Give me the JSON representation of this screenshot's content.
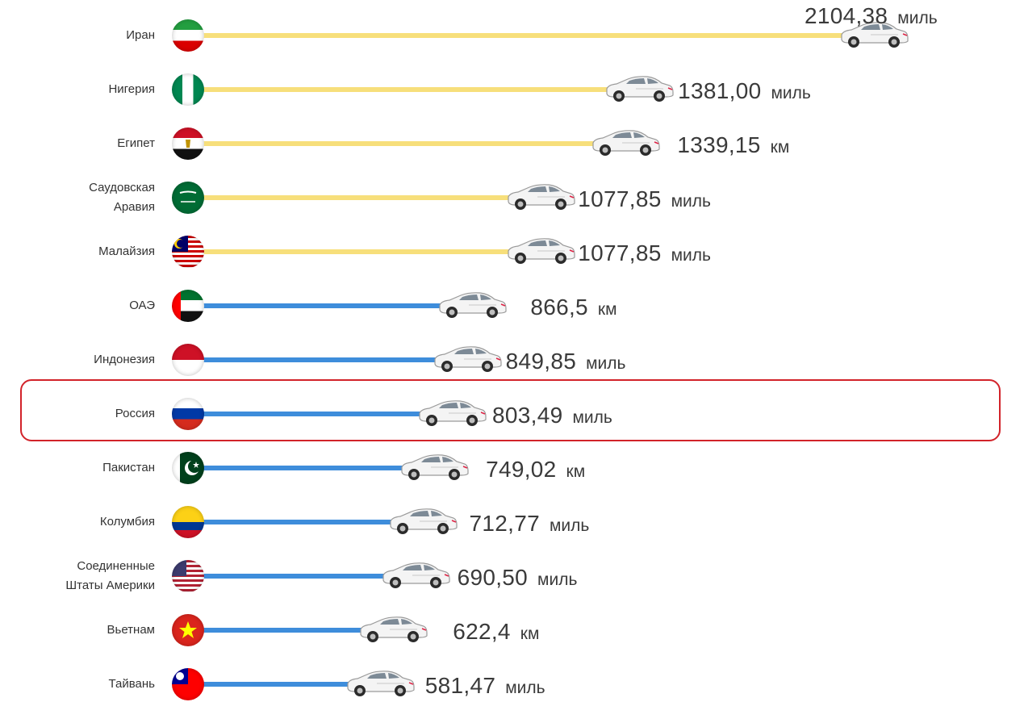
{
  "colors": {
    "yellow_bar": "#f7df7b",
    "blue_bar": "#3e8ddb",
    "highlight": "#d2232a"
  },
  "chart_data": {
    "type": "bar",
    "orientation": "horizontal",
    "categories": [
      "Иран",
      "Нигерия",
      "Египет",
      "Саудовская Аравия",
      "Малайзия",
      "ОАЭ",
      "Индонезия",
      "Россия",
      "Пакистан",
      "Колумбия",
      "Соединенные Штаты Америки",
      "Вьетнам",
      "Тайвань"
    ],
    "values": [
      2104.38,
      1381.0,
      1339.15,
      1077.85,
      1077.85,
      866.5,
      849.85,
      803.49,
      749.02,
      712.77,
      690.5,
      622.4,
      581.47
    ],
    "value_labels": [
      "2104,38",
      "1381,00",
      "1339,15",
      "1077,85",
      "1077,85",
      "866,5",
      "849,85",
      "803,49",
      "749,02",
      "712,77",
      "690,50",
      "622,4",
      "581,47"
    ],
    "units": [
      "миль",
      "миль",
      "км",
      "миль",
      "миль",
      "км",
      "миль",
      "миль",
      "км",
      "миль",
      "миль",
      "км",
      "миль"
    ],
    "bar_colors": [
      "yellow",
      "yellow",
      "yellow",
      "yellow",
      "yellow",
      "blue",
      "blue",
      "blue",
      "blue",
      "blue",
      "blue",
      "blue",
      "blue"
    ],
    "highlighted_category": "Россия",
    "grid": false,
    "legend": "none"
  }
}
